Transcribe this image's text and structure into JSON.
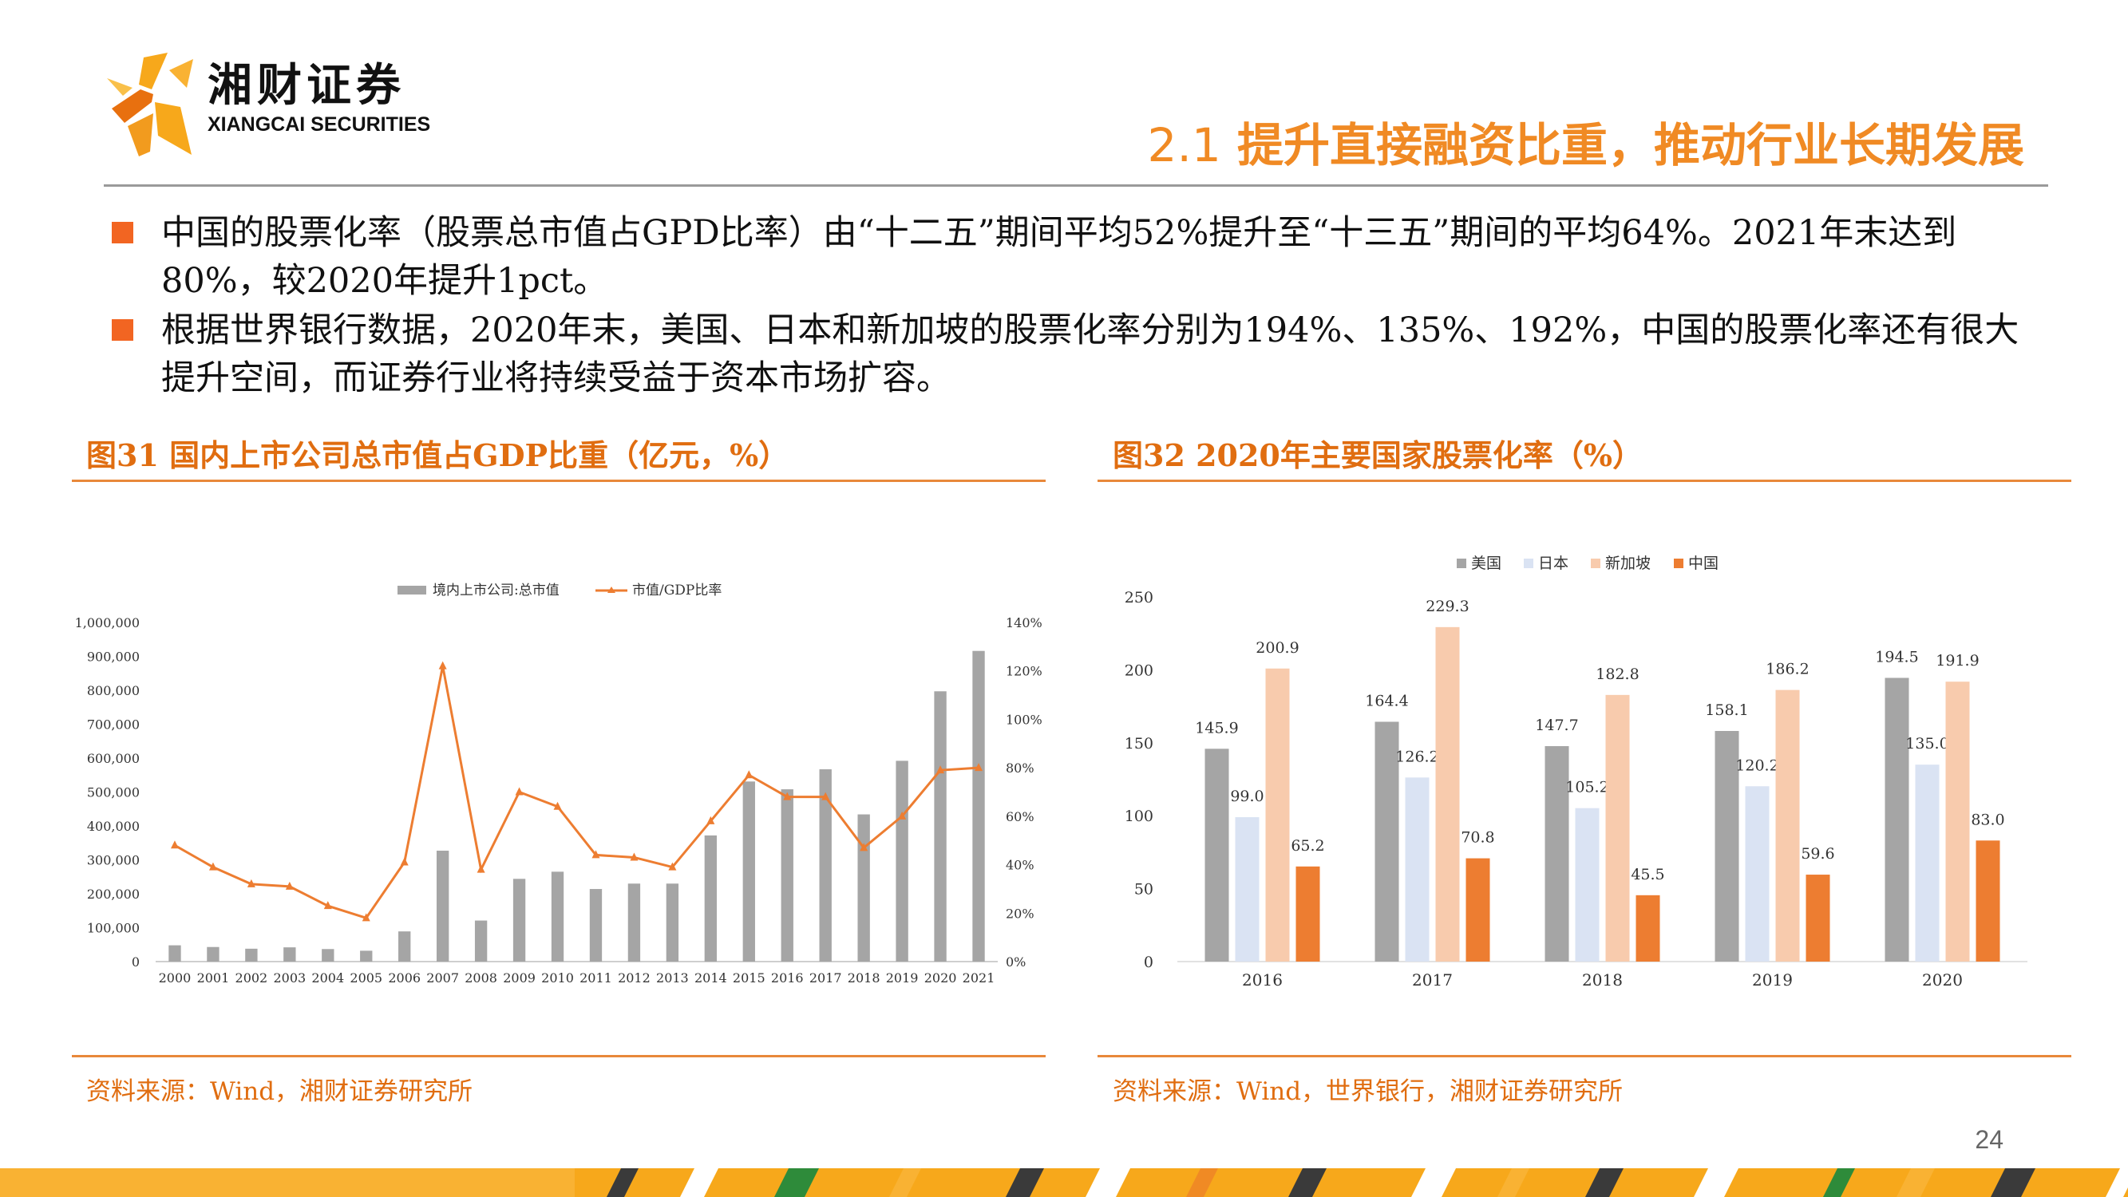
{
  "header": {
    "logo_cn": "湘财证券",
    "logo_en": "XIANGCAI SECURITIES",
    "title_num": "2.1",
    "title_text": " 提升直接融资比重，推动行业长期发展"
  },
  "bullets": [
    "中国的股票化率（股票总市值占GPD比率）由“十二五”期间平均52%提升至“十三五”期间的平均64%。2021年末达到80%，较2020年提升1pct。",
    "根据世界银行数据，2020年末，美国、日本和新加坡的股票化率分别为194%、135%、192%，中国的股票化率还有很大提升空间，而证券行业将持续受益于资本市场扩容。"
  ],
  "figure31": {
    "title": "图31 国内上市公司总市值占GDP比重（亿元，%）",
    "source": "资料来源：Wind，湘财证券研究所"
  },
  "figure32": {
    "title": "图32 2020年主要国家股票化率（%）",
    "source": "资料来源：Wind，世界银行，湘财证券研究所"
  },
  "page_number": "24",
  "colors": {
    "accent": "#F08A24",
    "bar_gray": "#A5A5A5",
    "line_orange": "#ED7D31",
    "japan": "#DAE3F3",
    "singapore": "#F8CBAD",
    "china": "#ED7D31"
  },
  "chart_data": [
    {
      "type": "bar+line",
      "title": "",
      "x": [
        "2000",
        "2001",
        "2002",
        "2003",
        "2004",
        "2005",
        "2006",
        "2007",
        "2008",
        "2009",
        "2010",
        "2011",
        "2012",
        "2013",
        "2014",
        "2015",
        "2016",
        "2017",
        "2018",
        "2019",
        "2020",
        "2021"
      ],
      "series": [
        {
          "name": "境内上市公司:总市值",
          "type": "bar",
          "axis": "left",
          "values": [
            48000,
            43000,
            38000,
            42000,
            37000,
            32000,
            89000,
            327000,
            121000,
            244000,
            265000,
            214000,
            230000,
            230000,
            372000,
            531000,
            508000,
            567000,
            434000,
            592000,
            797000,
            916000
          ]
        },
        {
          "name": "市值/GDP比率",
          "type": "line",
          "axis": "right",
          "values": [
            48,
            39,
            32,
            31,
            23,
            18,
            41,
            122,
            38,
            70,
            64,
            44,
            43,
            39,
            58,
            77,
            68,
            68,
            47,
            60,
            79,
            80
          ]
        }
      ],
      "y_left_ticks": [
        "0",
        "100,000",
        "200,000",
        "300,000",
        "400,000",
        "500,000",
        "600,000",
        "700,000",
        "800,000",
        "900,000",
        "1,000,000"
      ],
      "y_right_ticks": [
        "0%",
        "20%",
        "40%",
        "60%",
        "80%",
        "100%",
        "120%",
        "140%"
      ],
      "ylim_left": [
        0,
        1000000
      ],
      "ylim_right": [
        0,
        140
      ],
      "legend": "top"
    },
    {
      "type": "bar",
      "title": "",
      "categories": [
        "2016",
        "2017",
        "2018",
        "2019",
        "2020"
      ],
      "series": [
        {
          "name": "美国",
          "values": [
            145.9,
            164.4,
            147.7,
            158.1,
            194.5
          ]
        },
        {
          "name": "日本",
          "values": [
            99.0,
            126.2,
            105.2,
            120.2,
            135.0
          ]
        },
        {
          "name": "新加坡",
          "values": [
            200.9,
            229.3,
            182.8,
            186.2,
            191.9
          ]
        },
        {
          "name": "中国",
          "values": [
            65.2,
            70.8,
            45.5,
            59.6,
            83.0
          ]
        }
      ],
      "y_ticks": [
        "0",
        "50",
        "100",
        "150",
        "200",
        "250"
      ],
      "ylim": [
        0,
        250
      ],
      "legend": "top"
    }
  ]
}
